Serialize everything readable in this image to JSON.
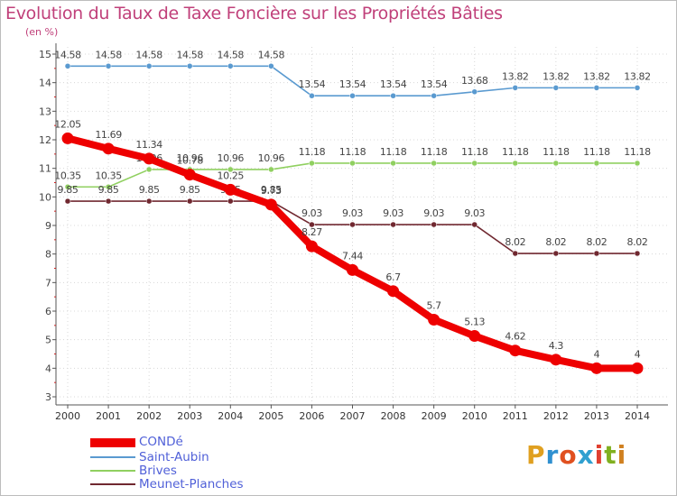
{
  "header": {
    "title": "Evolution du Taux de Taxe Foncière sur les Propriétés Bâties",
    "unit": "(en %)"
  },
  "brand": {
    "text": "Proxiti",
    "colors": [
      "#e0a020",
      "#3090d0",
      "#e05020",
      "#30a0d0",
      "#e04030",
      "#80b020",
      "#d08020"
    ]
  },
  "chart_data": {
    "type": "line",
    "title": "Evolution du Taux de Taxe Foncière sur les Propriétés Bâties",
    "ylabel": "(en %)",
    "xlabel": "",
    "x": [
      "2000",
      "2001",
      "2002",
      "2003",
      "2004",
      "2005",
      "2006",
      "2007",
      "2008",
      "2009",
      "2010",
      "2011",
      "2012",
      "2013",
      "2014"
    ],
    "yticks": [
      "3",
      "4",
      "5",
      "6",
      "7",
      "8",
      "9",
      "10",
      "11",
      "12",
      "13",
      "14",
      "15"
    ],
    "ylim": [
      3,
      15
    ],
    "legend_position": "bottom-left",
    "series": [
      {
        "name": "Saint-Aubin",
        "color": "#5a9ad0",
        "values": [
          14.58,
          14.58,
          14.58,
          14.58,
          14.58,
          14.58,
          13.54,
          13.54,
          13.54,
          13.54,
          13.68,
          13.82,
          13.82,
          13.82,
          13.82
        ],
        "labels": [
          "14.58",
          "14.58",
          "14.58",
          "14.58",
          "14.58",
          "14.58",
          "13.54",
          "13.54",
          "13.54",
          "13.54",
          "13.68",
          "13.82",
          "13.82",
          "13.82",
          "13.82"
        ]
      },
      {
        "name": "Brives",
        "color": "#90d060",
        "values": [
          10.35,
          10.35,
          10.96,
          10.96,
          10.96,
          10.96,
          11.18,
          11.18,
          11.18,
          11.18,
          11.18,
          11.18,
          11.18,
          11.18,
          11.18
        ],
        "labels": [
          "10.35",
          "10.35",
          "10.96",
          "10.96",
          "10.96",
          "10.96",
          "11.18",
          "11.18",
          "11.18",
          "11.18",
          "11.18",
          "11.18",
          "11.18",
          "11.18",
          "11.18"
        ]
      },
      {
        "name": "Meunet-Planches",
        "color": "#702830",
        "values": [
          9.85,
          9.85,
          9.85,
          9.85,
          9.85,
          9.85,
          9.03,
          9.03,
          9.03,
          9.03,
          9.03,
          8.02,
          8.02,
          8.02,
          8.02
        ],
        "labels": [
          "9.85",
          "9.85",
          "9.85",
          "9.85",
          "9.85",
          "9.85",
          "9.03",
          "9.03",
          "9.03",
          "9.03",
          "9.03",
          "8.02",
          "8.02",
          "8.02",
          "8.02"
        ]
      },
      {
        "name": "CONDé",
        "color": "#ee0000",
        "values": [
          12.05,
          11.69,
          11.34,
          10.78,
          10.25,
          9.73,
          8.27,
          7.44,
          6.7,
          5.7,
          5.13,
          4.62,
          4.3,
          4,
          4
        ],
        "labels": [
          "12.05",
          "11.69",
          "11.34",
          "10.78",
          "10.25",
          "9.73",
          "8.27",
          "7.44",
          "6.7",
          "5.7",
          "5.13",
          "4.62",
          "4.3",
          "4",
          "4"
        ]
      }
    ],
    "legend": [
      {
        "name": "CONDé",
        "color": "#ee0000"
      },
      {
        "name": "Saint-Aubin",
        "color": "#5a9ad0"
      },
      {
        "name": "Brives",
        "color": "#90d060"
      },
      {
        "name": "Meunet-Planches",
        "color": "#702830"
      }
    ]
  }
}
